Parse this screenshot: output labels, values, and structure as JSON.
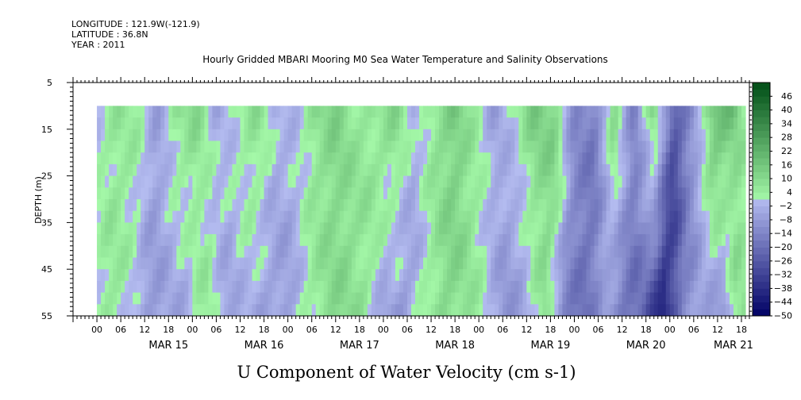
{
  "header": {
    "longitude": "LONGITUDE : 121.9W(-121.9)",
    "latitude": "LATITUDE : 36.8N",
    "year": "YEAR : 2011",
    "title": "Hourly Gridded MBARI Mooring M0 Sea Water Temperature and Salinity Observations"
  },
  "chart_data": {
    "type": "heatmap",
    "title": "Hourly Gridded MBARI Mooring M0 Sea Water Temperature and Salinity Observations",
    "xlabel": "U Component of Water Velocity (cm s-1)",
    "ylabel": "DEPTH (m)",
    "y_axis": {
      "range": [
        5,
        55
      ],
      "inverted": true,
      "ticks": [
        5,
        15,
        25,
        35,
        45,
        55
      ],
      "minor_step": 1
    },
    "x_axis": {
      "start_hour": -6,
      "end_hour": 164,
      "hour_ticks": [
        "00",
        "06",
        "12",
        "18",
        "00",
        "06",
        "12",
        "18",
        "00",
        "06",
        "12",
        "18",
        "00",
        "06",
        "12",
        "18",
        "00",
        "06",
        "12",
        "18",
        "00",
        "06",
        "12",
        "18",
        "00",
        "06",
        "12",
        "18"
      ],
      "day_labels": [
        "MAR 15",
        "MAR 16",
        "MAR 17",
        "MAR 18",
        "MAR 19",
        "MAR 20",
        "MAR 21"
      ],
      "day_label_hours": [
        18,
        42,
        66,
        90,
        114,
        138,
        160
      ]
    },
    "data_extent": {
      "hour_start": 0,
      "hour_end": 163,
      "depth_top": 10,
      "depth_bottom": 55
    },
    "colorbar": {
      "levels": [
        -50,
        -44,
        -38,
        -32,
        -26,
        -20,
        -14,
        -8,
        -2,
        4,
        10,
        16,
        22,
        28,
        34,
        40,
        46
      ],
      "max": 52,
      "label_values": [
        "46",
        "40",
        "34",
        "28",
        "22",
        "16",
        "10",
        "4",
        "−2",
        "−8",
        "−14",
        "−20",
        "−26",
        "−32",
        "−38",
        "−44",
        "−50"
      ]
    },
    "profile": {
      "hours": [
        0,
        5,
        10,
        15,
        20,
        25,
        30,
        35,
        40,
        45,
        50,
        55,
        60,
        65,
        70,
        75,
        80,
        85,
        90,
        95,
        100,
        105,
        110,
        115,
        120,
        125,
        130,
        135,
        140,
        145,
        150,
        155,
        160,
        163
      ],
      "u_shallow": [
        2,
        6,
        4,
        -6,
        6,
        10,
        -4,
        3,
        8,
        -2,
        0,
        8,
        12,
        6,
        6,
        10,
        -2,
        8,
        14,
        4,
        -6,
        2,
        14,
        12,
        -12,
        -16,
        10,
        -14,
        12,
        -26,
        -8,
        18,
        16,
        4
      ],
      "u_deep": [
        -2,
        6,
        2,
        -8,
        -6,
        -4,
        6,
        -6,
        -2,
        -6,
        -8,
        2,
        8,
        10,
        6,
        -6,
        -8,
        2,
        10,
        8,
        2,
        -10,
        -6,
        8,
        -14,
        -20,
        -8,
        -18,
        -22,
        -44,
        -14,
        -6,
        -10,
        6
      ]
    },
    "colors": {
      "negative_light": "#b4bcf0",
      "negative_dark": "#000064",
      "positive_light": "#a4f8a8",
      "positive_dark": "#004d16"
    }
  }
}
